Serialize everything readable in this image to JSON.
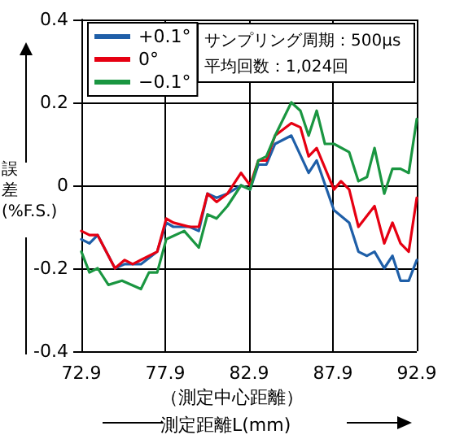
{
  "chart_data": {
    "type": "line",
    "xlabel": "（測定中心距離）測定距離L(mm)",
    "ylabel": "誤差(%F.S.)",
    "annotations": [
      "サンプリング周期：500μs\n平均回数：1,024回"
    ],
    "xlim": [
      72.9,
      92.9
    ],
    "xticks": [
      72.9,
      77.9,
      82.9,
      87.9,
      92.9
    ],
    "ylim": [
      -0.4,
      0.4
    ],
    "yticks": [
      -0.4,
      -0.2,
      0,
      0.2,
      0.4
    ],
    "grid": true,
    "legend": "top left",
    "marker": "none",
    "line_style": "solid",
    "series": [
      {
        "name": "+0.1°",
        "color": "#1f5fa8",
        "x": [
          72.9,
          73.38,
          73.87,
          74.9,
          75.48,
          76.45,
          77.42,
          77.96,
          78.38,
          79.35,
          79.9,
          80.42,
          80.96,
          81.61,
          82.42,
          82.96,
          83.45,
          83.93,
          84.45,
          85.42,
          86.45,
          86.93,
          87.96,
          88.87,
          89.42,
          89.93,
          90.38,
          90.96,
          91.45,
          91.93,
          92.42,
          92.9
        ],
        "values": [
          -0.13,
          -0.14,
          -0.12,
          -0.2,
          -0.19,
          -0.19,
          -0.16,
          -0.09,
          -0.1,
          -0.1,
          -0.11,
          -0.02,
          -0.03,
          -0.02,
          0,
          -0.01,
          0.05,
          0.05,
          0.1,
          0.12,
          0.03,
          0.06,
          -0.06,
          -0.09,
          -0.16,
          -0.17,
          -0.16,
          -0.2,
          -0.17,
          -0.23,
          -0.23,
          -0.18
        ]
      },
      {
        "name": "0°",
        "color": "#e60012",
        "x": [
          72.9,
          73.38,
          73.87,
          74.9,
          75.48,
          75.96,
          76.45,
          77.42,
          77.96,
          78.38,
          79.35,
          79.9,
          80.42,
          80.96,
          81.61,
          82.42,
          82.96,
          83.45,
          83.93,
          84.45,
          85.42,
          85.96,
          86.45,
          86.93,
          87.96,
          88.38,
          88.87,
          89.42,
          90.38,
          90.96,
          91.45,
          91.93,
          92.42,
          92.9
        ],
        "values": [
          -0.11,
          -0.12,
          -0.12,
          -0.2,
          -0.18,
          -0.19,
          -0.18,
          -0.16,
          -0.08,
          -0.09,
          -0.1,
          -0.1,
          -0.02,
          -0.04,
          -0.02,
          0.03,
          0,
          0.06,
          0.06,
          0.12,
          0.15,
          0.14,
          0.07,
          0.09,
          -0.01,
          0.01,
          -0.01,
          -0.1,
          -0.05,
          -0.14,
          -0.09,
          -0.14,
          -0.16,
          -0.03
        ]
      },
      {
        "name": "−0.1°",
        "color": "#1a9641",
        "x": [
          72.9,
          73.38,
          73.87,
          74.51,
          75.32,
          76.45,
          76.93,
          77.42,
          77.96,
          79.03,
          79.9,
          80.42,
          80.96,
          81.61,
          82.42,
          82.96,
          83.45,
          83.93,
          84.45,
          85.42,
          85.96,
          86.45,
          86.93,
          87.42,
          87.96,
          88.87,
          89.42,
          89.93,
          90.38,
          90.96,
          91.45,
          91.93,
          92.42,
          92.9
        ],
        "values": [
          -0.16,
          -0.21,
          -0.2,
          -0.24,
          -0.23,
          -0.25,
          -0.21,
          -0.21,
          -0.13,
          -0.11,
          -0.15,
          -0.07,
          -0.08,
          -0.05,
          0,
          -0.01,
          0.06,
          0.07,
          0.12,
          0.2,
          0.18,
          0.12,
          0.18,
          0.1,
          0.1,
          0.08,
          0.01,
          0.02,
          0.09,
          -0.02,
          0.04,
          0.04,
          0.03,
          0.16
        ]
      }
    ]
  }
}
